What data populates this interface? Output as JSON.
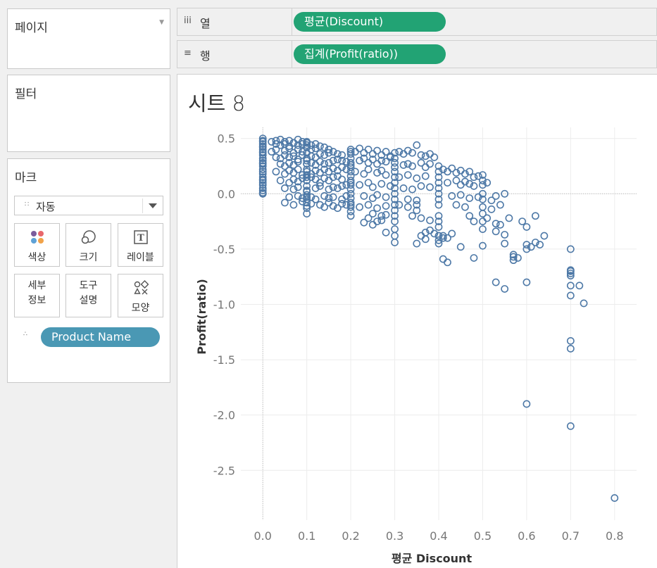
{
  "cards": {
    "pages": {
      "title": "페이지"
    },
    "filters": {
      "title": "필터"
    },
    "marks": {
      "title": "마크",
      "mark_type": "자동",
      "buttons": [
        {
          "id": "color",
          "label": "색상",
          "icon": "color-dots-icon"
        },
        {
          "id": "size",
          "label": "크기",
          "icon": "size-circles-icon"
        },
        {
          "id": "label",
          "label": "레이블",
          "icon": "text-t-icon"
        },
        {
          "id": "detail",
          "label": "세부\n정보",
          "label_line1": "세부",
          "label_line2": "정보",
          "icon": "none"
        },
        {
          "id": "tooltip",
          "label": "도구\n설명",
          "label_line1": "도구",
          "label_line2": "설명",
          "icon": "none"
        },
        {
          "id": "shape",
          "label": "모양",
          "icon": "shapes-icon"
        }
      ],
      "detail_field": "Product Name"
    }
  },
  "shelves": {
    "columns": {
      "label": "열",
      "icon": "columns-icon",
      "pill": "평균(Discount)"
    },
    "rows": {
      "label": "행",
      "icon": "rows-icon",
      "pill": "집계(Profit(ratio))"
    }
  },
  "sheet": {
    "title": "시트 8"
  },
  "colors": {
    "mark": "#4e79a7",
    "measure_pill": "#22a374",
    "dimension_pill": "#4a98b4"
  },
  "chart_data": {
    "type": "scatter",
    "xlabel": "평균 Discount",
    "ylabel": "Profit(ratio)",
    "xlim": [
      -0.05,
      0.85
    ],
    "ylim": [
      -2.95,
      0.6
    ],
    "xticks": [
      0.0,
      0.1,
      0.2,
      0.3,
      0.4,
      0.5,
      0.6,
      0.7,
      0.8
    ],
    "xtick_labels": [
      "0.0",
      "0.1",
      "0.2",
      "0.3",
      "0.4",
      "0.5",
      "0.6",
      "0.7",
      "0.8"
    ],
    "yticks": [
      0.5,
      0.0,
      -0.5,
      -1.0,
      -1.5,
      -2.0,
      -2.5
    ],
    "ytick_labels": [
      "0.5",
      "0.0",
      "-0.5",
      "-1.0",
      "-1.5",
      "-2.0",
      "-2.5"
    ],
    "grid": true,
    "marker": "open-circle",
    "series": [
      {
        "x": [
          0.0,
          0.0,
          0.0,
          0.0,
          0.0,
          0.0,
          0.0,
          0.0,
          0.0,
          0.0,
          0.0,
          0.0,
          0.0,
          0.0,
          0.0,
          0.0,
          0.0,
          0.0,
          0.0,
          0.0,
          0.0,
          0.0,
          0.0,
          0.0,
          0.0,
          0.0,
          0.0,
          0.02,
          0.03,
          0.04,
          0.05,
          0.06,
          0.07,
          0.08,
          0.09,
          0.03,
          0.04,
          0.05,
          0.06,
          0.07,
          0.08,
          0.09,
          0.1,
          0.11,
          0.12,
          0.02,
          0.03,
          0.05,
          0.06,
          0.07,
          0.08,
          0.09,
          0.1,
          0.11,
          0.12,
          0.13,
          0.14,
          0.15,
          0.03,
          0.04,
          0.05,
          0.06,
          0.07,
          0.08,
          0.09,
          0.1,
          0.11,
          0.12,
          0.13,
          0.14,
          0.15,
          0.16,
          0.17,
          0.18,
          0.04,
          0.05,
          0.06,
          0.07,
          0.08,
          0.1,
          0.11,
          0.12,
          0.13,
          0.14,
          0.15,
          0.16,
          0.17,
          0.18,
          0.19,
          0.03,
          0.05,
          0.06,
          0.07,
          0.08,
          0.09,
          0.1,
          0.11,
          0.12,
          0.13,
          0.14,
          0.15,
          0.16,
          0.17,
          0.18,
          0.19,
          0.04,
          0.06,
          0.07,
          0.08,
          0.09,
          0.1,
          0.11,
          0.12,
          0.13,
          0.14,
          0.15,
          0.16,
          0.17,
          0.18,
          0.05,
          0.07,
          0.08,
          0.1,
          0.12,
          0.13,
          0.15,
          0.16,
          0.17,
          0.18,
          0.19,
          0.06,
          0.08,
          0.09,
          0.1,
          0.11,
          0.12,
          0.14,
          0.15,
          0.16,
          0.18,
          0.19,
          0.05,
          0.07,
          0.09,
          0.1,
          0.11,
          0.13,
          0.14,
          0.15,
          0.16,
          0.17,
          0.18,
          0.19,
          0.1,
          0.1,
          0.1,
          0.1,
          0.1,
          0.1,
          0.1,
          0.1,
          0.1,
          0.1,
          0.1,
          0.1,
          0.1,
          0.1,
          0.1,
          0.1,
          0.1,
          0.1,
          0.2,
          0.2,
          0.2,
          0.2,
          0.2,
          0.2,
          0.2,
          0.2,
          0.2,
          0.2,
          0.2,
          0.2,
          0.2,
          0.2,
          0.2,
          0.2,
          0.2,
          0.2,
          0.2,
          0.2,
          0.21,
          0.22,
          0.23,
          0.24,
          0.25,
          0.26,
          0.27,
          0.28,
          0.29,
          0.22,
          0.23,
          0.24,
          0.25,
          0.26,
          0.27,
          0.28,
          0.29,
          0.21,
          0.23,
          0.24,
          0.26,
          0.27,
          0.28,
          0.22,
          0.24,
          0.25,
          0.27,
          0.29,
          0.23,
          0.25,
          0.26,
          0.28,
          0.22,
          0.24,
          0.26,
          0.28,
          0.25,
          0.27,
          0.24,
          0.26,
          0.28,
          0.23,
          0.25,
          0.27,
          0.3,
          0.3,
          0.3,
          0.3,
          0.3,
          0.3,
          0.3,
          0.3,
          0.3,
          0.3,
          0.3,
          0.3,
          0.3,
          0.3,
          0.3,
          0.3,
          0.31,
          0.32,
          0.33,
          0.34,
          0.35,
          0.36,
          0.37,
          0.38,
          0.39,
          0.32,
          0.33,
          0.34,
          0.36,
          0.37,
          0.38,
          0.31,
          0.33,
          0.35,
          0.37,
          0.32,
          0.34,
          0.36,
          0.38,
          0.33,
          0.35,
          0.31,
          0.33,
          0.35,
          0.34,
          0.36,
          0.38,
          0.37,
          0.36,
          0.35,
          0.4,
          0.4,
          0.4,
          0.4,
          0.4,
          0.4,
          0.4,
          0.4,
          0.4,
          0.4,
          0.4,
          0.4,
          0.4,
          0.4,
          0.41,
          0.42,
          0.43,
          0.44,
          0.45,
          0.46,
          0.47,
          0.48,
          0.49,
          0.42,
          0.44,
          0.45,
          0.46,
          0.47,
          0.48,
          0.43,
          0.45,
          0.47,
          0.49,
          0.44,
          0.46,
          0.41,
          0.43,
          0.42,
          0.45,
          0.48,
          0.41,
          0.42,
          0.38,
          0.39,
          0.47,
          0.48,
          0.37,
          0.5,
          0.5,
          0.5,
          0.5,
          0.5,
          0.5,
          0.5,
          0.5,
          0.5,
          0.5,
          0.51,
          0.52,
          0.53,
          0.54,
          0.55,
          0.51,
          0.53,
          0.52,
          0.54,
          0.53,
          0.55,
          0.56,
          0.58,
          0.57,
          0.59,
          0.6,
          0.61,
          0.62,
          0.62,
          0.63,
          0.64,
          0.55,
          0.57,
          0.57,
          0.6,
          0.6,
          0.53,
          0.55,
          0.6,
          0.7,
          0.7,
          0.7,
          0.7,
          0.7,
          0.7,
          0.7,
          0.72,
          0.73,
          0.7,
          0.7,
          0.6,
          0.7,
          0.8,
          0.35,
          0.28,
          0.4,
          0.41,
          0.3
        ],
        "y": [
          0.5,
          0.48,
          0.45,
          0.42,
          0.4,
          0.37,
          0.35,
          0.32,
          0.3,
          0.27,
          0.25,
          0.22,
          0.2,
          0.18,
          0.15,
          0.13,
          0.1,
          0.08,
          0.05,
          0.03,
          0.01,
          0.0,
          0.47,
          0.43,
          0.38,
          0.28,
          0.12,
          0.47,
          0.48,
          0.49,
          0.47,
          0.48,
          0.46,
          0.49,
          0.47,
          0.45,
          0.44,
          0.45,
          0.43,
          0.46,
          0.44,
          0.45,
          0.46,
          0.44,
          0.45,
          0.38,
          0.4,
          0.39,
          0.41,
          0.37,
          0.4,
          0.38,
          0.42,
          0.4,
          0.41,
          0.43,
          0.42,
          0.4,
          0.33,
          0.32,
          0.35,
          0.33,
          0.34,
          0.31,
          0.35,
          0.32,
          0.34,
          0.33,
          0.36,
          0.35,
          0.37,
          0.38,
          0.36,
          0.35,
          0.27,
          0.25,
          0.28,
          0.26,
          0.29,
          0.27,
          0.28,
          0.26,
          0.29,
          0.27,
          0.28,
          0.3,
          0.31,
          0.3,
          0.29,
          0.2,
          0.18,
          0.21,
          0.19,
          0.22,
          0.17,
          0.2,
          0.18,
          0.21,
          0.19,
          0.22,
          0.2,
          0.23,
          0.21,
          0.24,
          0.22,
          0.12,
          0.1,
          0.13,
          0.11,
          0.14,
          0.12,
          0.15,
          0.13,
          0.1,
          0.14,
          0.12,
          0.15,
          0.16,
          0.13,
          0.05,
          0.04,
          0.06,
          0.03,
          0.05,
          0.07,
          0.04,
          0.06,
          0.05,
          0.07,
          0.08,
          -0.03,
          -0.02,
          -0.04,
          -0.01,
          -0.03,
          -0.05,
          -0.02,
          -0.04,
          -0.03,
          -0.05,
          -0.02,
          -0.08,
          -0.1,
          -0.07,
          -0.11,
          -0.09,
          -0.1,
          -0.12,
          -0.08,
          -0.11,
          -0.13,
          -0.09,
          -0.1,
          0.47,
          0.42,
          0.37,
          0.32,
          0.27,
          0.22,
          0.17,
          0.12,
          0.07,
          0.02,
          -0.03,
          -0.08,
          -0.13,
          -0.18,
          0.44,
          0.3,
          0.15,
          -0.05,
          0.4,
          0.36,
          0.32,
          0.28,
          0.24,
          0.2,
          0.16,
          0.12,
          0.08,
          0.04,
          0.0,
          -0.04,
          -0.08,
          -0.12,
          -0.16,
          -0.2,
          0.38,
          0.26,
          0.1,
          -0.1,
          0.38,
          0.41,
          0.37,
          0.4,
          0.36,
          0.39,
          0.35,
          0.38,
          0.34,
          0.3,
          0.32,
          0.28,
          0.31,
          0.27,
          0.3,
          0.29,
          0.33,
          0.2,
          0.18,
          0.22,
          0.19,
          0.21,
          0.17,
          0.08,
          0.1,
          0.06,
          0.09,
          0.07,
          -0.02,
          -0.04,
          -0.01,
          -0.03,
          -0.12,
          -0.1,
          -0.13,
          -0.11,
          -0.18,
          -0.2,
          -0.22,
          -0.25,
          -0.19,
          -0.26,
          -0.28,
          -0.24,
          0.37,
          0.32,
          0.28,
          0.24,
          0.2,
          0.15,
          0.1,
          0.05,
          0.0,
          -0.05,
          -0.1,
          -0.15,
          -0.2,
          -0.25,
          -0.32,
          -0.38,
          0.38,
          0.36,
          0.39,
          0.37,
          0.44,
          0.35,
          0.34,
          0.36,
          0.33,
          0.26,
          0.27,
          0.25,
          0.28,
          0.24,
          0.27,
          0.15,
          0.17,
          0.14,
          0.16,
          0.05,
          0.04,
          0.07,
          0.06,
          -0.05,
          -0.06,
          -0.1,
          -0.12,
          -0.15,
          -0.2,
          -0.22,
          -0.24,
          -0.35,
          -0.38,
          -0.45,
          0.25,
          0.2,
          0.15,
          0.1,
          0.05,
          0.0,
          -0.05,
          -0.1,
          -0.2,
          -0.25,
          -0.3,
          -0.38,
          -0.42,
          -0.45,
          0.22,
          0.2,
          0.23,
          0.19,
          0.21,
          0.18,
          0.2,
          0.15,
          0.16,
          0.1,
          0.12,
          0.08,
          0.11,
          0.09,
          0.07,
          -0.02,
          -0.01,
          -0.04,
          -0.03,
          -0.1,
          -0.12,
          -0.38,
          -0.36,
          -0.4,
          -0.48,
          -0.58,
          -0.59,
          -0.62,
          -0.33,
          -0.36,
          -0.2,
          -0.25,
          -0.41,
          0.17,
          0.12,
          0.08,
          0.0,
          -0.05,
          -0.12,
          -0.18,
          -0.25,
          -0.32,
          -0.47,
          0.1,
          -0.06,
          -0.02,
          -0.1,
          0.0,
          -0.22,
          -0.27,
          -0.14,
          -0.28,
          -0.34,
          -0.37,
          -0.22,
          -0.58,
          -0.6,
          -0.25,
          -0.5,
          -0.48,
          -0.44,
          -0.2,
          -0.46,
          -0.38,
          -0.45,
          -0.55,
          -0.57,
          -0.8,
          -1.9,
          -0.8,
          -0.86,
          -0.3,
          -0.7,
          -0.72,
          -0.83,
          -0.92,
          -1.33,
          -1.4,
          -2.1,
          -0.83,
          -0.99,
          -0.74,
          -0.69,
          -0.46,
          -0.5,
          -2.75,
          -0.1,
          -0.35,
          -0.38,
          -0.4,
          -0.44
        ]
      }
    ]
  }
}
